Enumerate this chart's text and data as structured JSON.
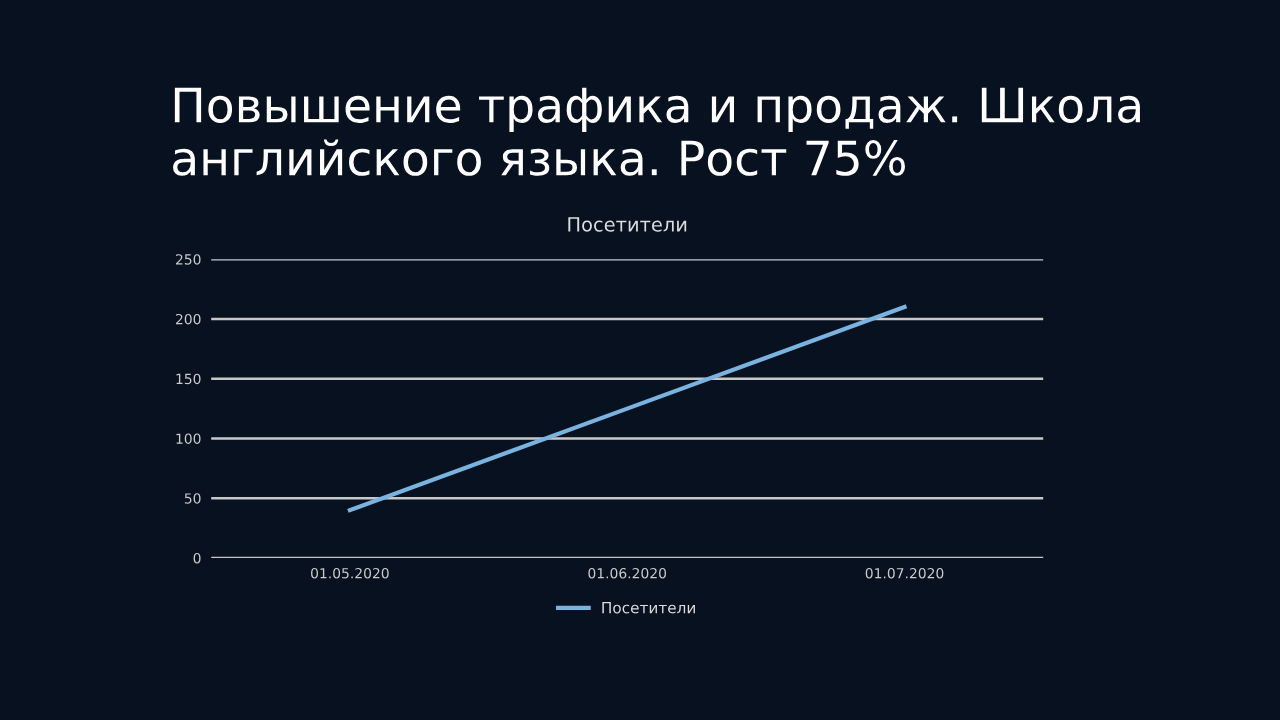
{
  "chart_data": {
    "type": "line",
    "title": "Повышение трафика и продаж. Школа английского языка. Рост 75%",
    "subtitle": "Посетители",
    "categories": [
      "01.05.2020",
      "01.06.2020",
      "01.07.2020"
    ],
    "series": [
      {
        "name": "Посетители",
        "color": "#7ab3e0",
        "values": [
          40,
          125,
          210
        ]
      }
    ],
    "ylim": [
      0,
      250
    ],
    "yticks": [
      0,
      50,
      100,
      150,
      200,
      250
    ],
    "grid": "y",
    "legend": "bottom",
    "marker": "none",
    "line_style": "solid"
  }
}
